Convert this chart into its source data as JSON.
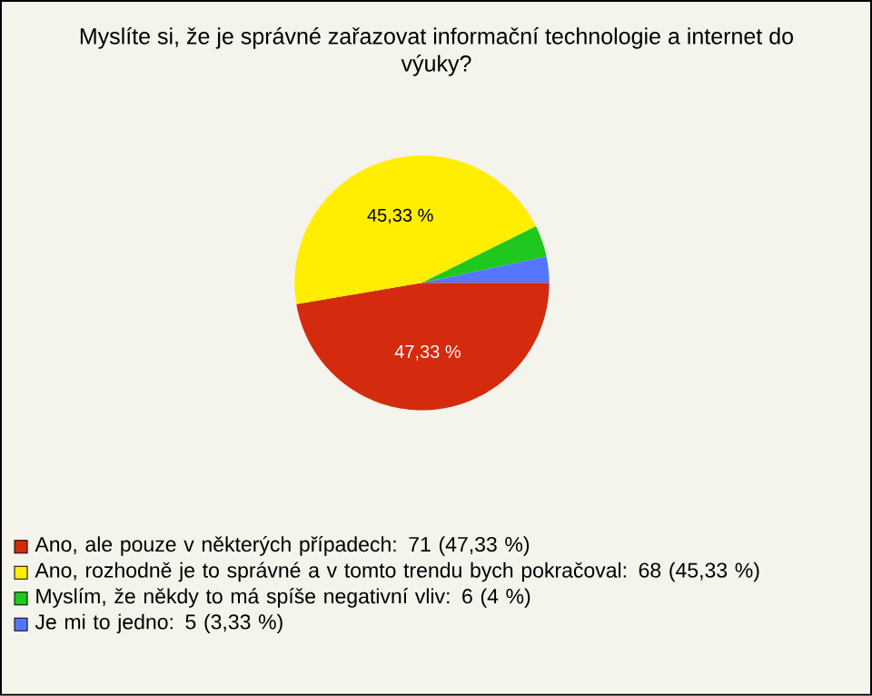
{
  "chart_data": {
    "type": "pie",
    "title": "Myslíte si, že je správné zařazovat informační technologie a internet do výuky?",
    "categories": [
      "Ano, ale pouze v některých případech: 71 (47,33 %)",
      "Ano, rozhodně je to správné a v tomto trendu bych pokračoval: 68 (45,33 %)",
      "Myslím, že někdy to má spíše negativní vliv: 6 (4 %)",
      "Je mi to jedno: 5 (3,33 %)"
    ],
    "values": [
      47.33,
      45.33,
      4,
      3.33
    ],
    "colors": [
      "#d42a0e",
      "#ffee00",
      "#1ec81e",
      "#5577ff"
    ],
    "value_labels": [
      "47,33 %",
      "45,33 %",
      null,
      null
    ],
    "legend": "bottom"
  }
}
